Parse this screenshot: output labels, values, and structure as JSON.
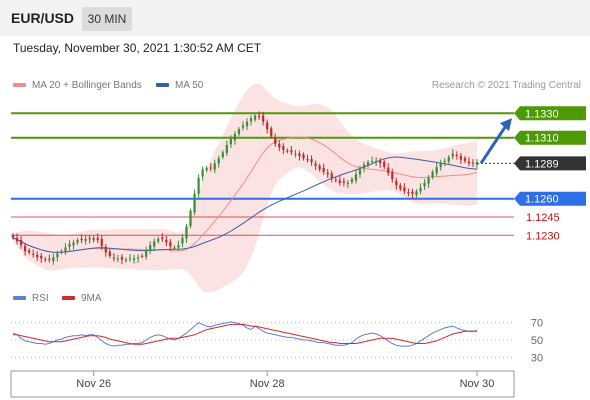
{
  "header": {
    "symbol": "EUR/USD",
    "timeframe": "30 MIN"
  },
  "datetime": "Tuesday, November 30, 2021 1:30:52 AM CET",
  "legend": {
    "items": [
      {
        "label": "MA 20 + Bollinger Bands",
        "color": "#f28b8b"
      },
      {
        "label": "MA 50",
        "color": "#3b5ea8"
      }
    ],
    "credit": "Research © 2021 Trading Central"
  },
  "rsi_legend": {
    "items": [
      {
        "label": "RSI",
        "color": "#5b7fd6"
      },
      {
        "label": "9MA",
        "color": "#d42a2a"
      }
    ]
  },
  "chart_data": [
    {
      "type": "candlestick",
      "ylim": [
        1.1195,
        1.1345
      ],
      "current_price": 1.1289,
      "levels": [
        {
          "label": "1.1330",
          "value": 1.133,
          "style": "resistance",
          "color": "#4e9a06"
        },
        {
          "label": "1.1310",
          "value": 1.131,
          "style": "resistance",
          "color": "#4e9a06"
        },
        {
          "label": "1.1289",
          "value": 1.1289,
          "style": "current",
          "color": "#333333"
        },
        {
          "label": "1.1260",
          "value": 1.126,
          "style": "pivot",
          "color": "#2f6fe6"
        },
        {
          "label": "1.1245",
          "value": 1.1245,
          "style": "support",
          "color": "#cc1111"
        },
        {
          "label": "1.1230",
          "value": 1.123,
          "style": "support",
          "color": "#cc1111"
        }
      ],
      "forecast_arrow": {
        "from": 1.1289,
        "to": 1.1326
      },
      "x_ticks": [
        {
          "label": "Nov 26",
          "bar": 20
        },
        {
          "label": "Nov 28",
          "bar": 63
        },
        {
          "label": "Nov 30",
          "bar": 115
        }
      ],
      "closes": [
        1.1228,
        1.1225,
        1.1222,
        1.1217,
        1.1216,
        1.1214,
        1.1212,
        1.1211,
        1.121,
        1.121,
        1.1212,
        1.1215,
        1.1217,
        1.122,
        1.1223,
        1.1224,
        1.1226,
        1.1226,
        1.1227,
        1.1227,
        1.1228,
        1.1226,
        1.1221,
        1.1216,
        1.1213,
        1.1211,
        1.1211,
        1.121,
        1.121,
        1.1211,
        1.1211,
        1.1212,
        1.1213,
        1.1217,
        1.1222,
        1.1225,
        1.1227,
        1.1227,
        1.1224,
        1.1221,
        1.122,
        1.1222,
        1.1228,
        1.1237,
        1.125,
        1.1264,
        1.1277,
        1.1284,
        1.1285,
        1.1285,
        1.1289,
        1.1293,
        1.1298,
        1.1304,
        1.1309,
        1.1313,
        1.1317,
        1.132,
        1.1323,
        1.1326,
        1.1328,
        1.1327,
        1.1323,
        1.1317,
        1.1311,
        1.1305,
        1.1302,
        1.13,
        1.1299,
        1.1298,
        1.1297,
        1.1295,
        1.1293,
        1.1292,
        1.129,
        1.1287,
        1.1284,
        1.1282,
        1.128,
        1.1277,
        1.1275,
        1.1273,
        1.1273,
        1.1273,
        1.1276,
        1.128,
        1.1284,
        1.1288,
        1.129,
        1.1291,
        1.1291,
        1.1289,
        1.1286,
        1.1281,
        1.1276,
        1.1271,
        1.1268,
        1.1266,
        1.1265,
        1.1264,
        1.1266,
        1.1269,
        1.1273,
        1.1277,
        1.1282,
        1.1286,
        1.1289,
        1.1291,
        1.1294,
        1.1297,
        1.1295,
        1.1292,
        1.1291,
        1.1289,
        1.1289,
        1.129
      ]
    },
    {
      "type": "line",
      "title": "RSI",
      "ylim": [
        20,
        80
      ],
      "y_ticks": [
        70,
        50,
        30
      ],
      "series": [
        {
          "name": "RSI",
          "color": "#5b7fd6",
          "values": [
            58,
            56,
            52,
            49,
            48,
            47,
            46,
            46,
            45,
            46,
            48,
            50,
            51,
            53,
            54,
            55,
            55,
            56,
            55,
            56,
            56,
            53,
            49,
            46,
            44,
            43,
            44,
            44,
            45,
            45,
            46,
            46,
            47,
            50,
            53,
            55,
            56,
            55,
            53,
            51,
            50,
            52,
            55,
            58,
            62,
            66,
            70,
            68,
            66,
            65,
            67,
            68,
            69,
            70,
            71,
            70,
            69,
            67,
            64,
            62,
            66,
            63,
            60,
            58,
            57,
            56,
            55,
            54,
            53,
            53,
            52,
            51,
            50,
            50,
            49,
            48,
            47,
            47,
            46,
            45,
            44,
            44,
            44,
            45,
            47,
            51,
            54,
            56,
            57,
            58,
            57,
            55,
            52,
            49,
            46,
            44,
            43,
            43,
            43,
            44,
            46,
            49,
            52,
            55,
            58,
            60,
            62,
            64,
            65,
            66,
            64,
            62,
            61,
            60,
            60,
            61
          ]
        },
        {
          "name": "9MA",
          "color": "#d42a2a",
          "values": [
            56,
            56,
            55,
            54,
            53,
            52,
            51,
            50,
            49,
            48,
            48,
            48,
            48,
            49,
            50,
            51,
            52,
            53,
            54,
            55,
            55,
            55,
            54,
            53,
            51,
            50,
            49,
            48,
            47,
            46,
            45,
            45,
            45,
            46,
            47,
            48,
            49,
            50,
            51,
            52,
            52,
            52,
            53,
            54,
            55,
            56,
            58,
            60,
            62,
            63,
            64,
            65,
            66,
            67,
            68,
            68,
            68,
            68,
            67,
            66,
            66,
            65,
            64,
            63,
            62,
            61,
            60,
            59,
            58,
            57,
            56,
            55,
            54,
            53,
            52,
            51,
            50,
            49,
            48,
            47,
            47,
            46,
            46,
            46,
            46,
            46,
            47,
            48,
            49,
            50,
            51,
            52,
            52,
            52,
            52,
            51,
            50,
            49,
            48,
            47,
            46,
            46,
            46,
            47,
            48,
            49,
            51,
            53,
            55,
            57,
            58,
            59,
            60,
            60,
            60,
            60
          ]
        }
      ]
    }
  ]
}
